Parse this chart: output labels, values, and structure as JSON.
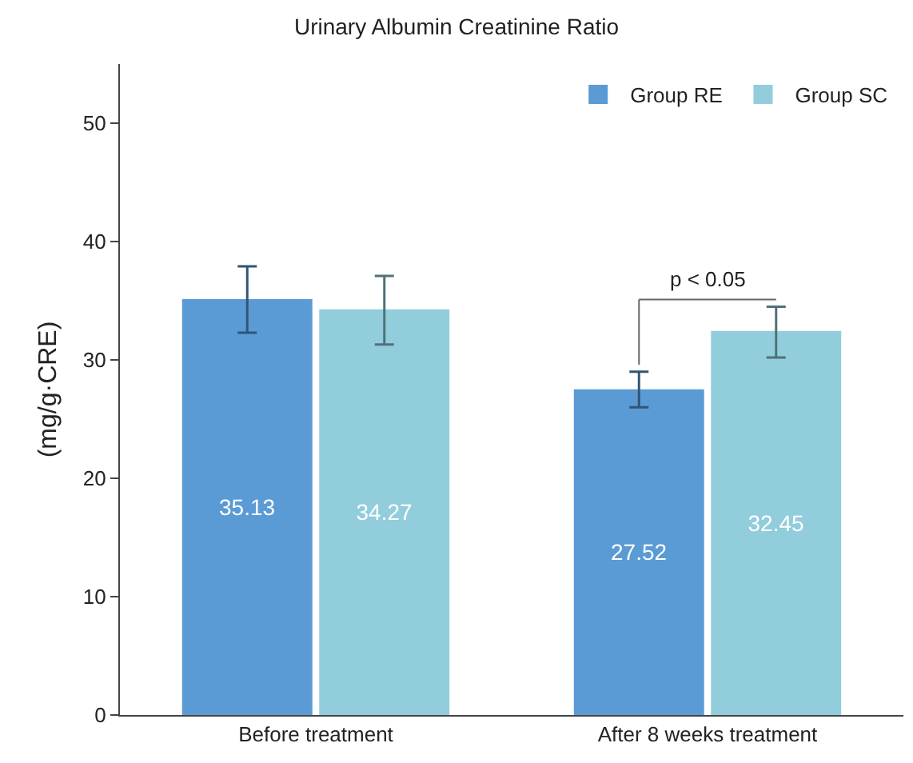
{
  "chart_data": {
    "type": "bar",
    "title": "Urinary Albumin Creatinine Ratio",
    "ylabel": "(mg/g·CRE)",
    "categories": [
      "Before treatment",
      "After 8 weeks treatment"
    ],
    "series": [
      {
        "name": "Group RE",
        "color": "#5b9bd5",
        "values": [
          35.13,
          27.52
        ],
        "errors": [
          [
            32.3,
            37.9
          ],
          [
            26.0,
            29.0
          ]
        ]
      },
      {
        "name": "Group SC",
        "color": "#92cddc",
        "values": [
          34.27,
          32.45
        ],
        "errors": [
          [
            31.3,
            37.1
          ],
          [
            30.2,
            34.5
          ]
        ]
      }
    ],
    "annotations": [
      "p < 0.05"
    ],
    "ylim": [
      0,
      55
    ],
    "yticks": [
      0,
      10,
      20,
      30,
      40,
      50
    ],
    "data_labels": true,
    "grid": false,
    "legend": "top right"
  }
}
